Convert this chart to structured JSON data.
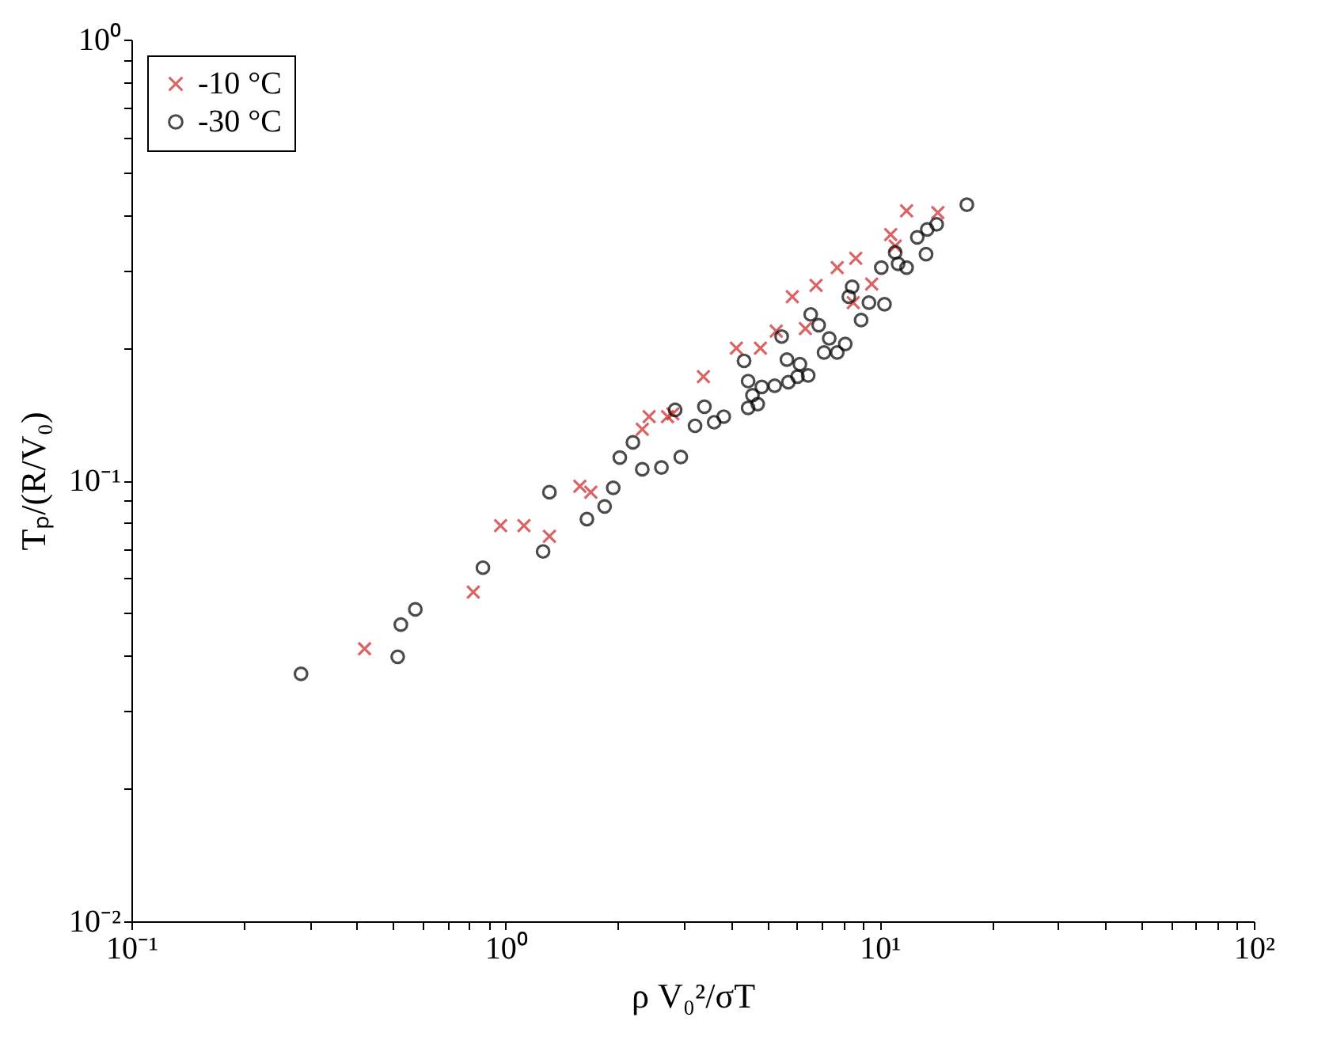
{
  "chart_data": {
    "type": "scatter",
    "xlabel": "ρ V₀²/σT",
    "ylabel": "Tₚ/(R/V₀)",
    "log": "xy",
    "xlim": [
      0.1,
      100
    ],
    "ylim": [
      0.01,
      1
    ],
    "xticks": [
      {
        "value": 0.1,
        "label": "10⁻¹"
      },
      {
        "value": 0.2,
        "label": null
      },
      {
        "value": 0.3,
        "label": null
      },
      {
        "value": 0.4,
        "label": null
      },
      {
        "value": 0.5,
        "label": null
      },
      {
        "value": 0.6,
        "label": null
      },
      {
        "value": 0.7,
        "label": null
      },
      {
        "value": 0.8,
        "label": null
      },
      {
        "value": 0.9,
        "label": null
      },
      {
        "value": 1,
        "label": "10⁰"
      },
      {
        "value": 2,
        "label": null
      },
      {
        "value": 3,
        "label": null
      },
      {
        "value": 4,
        "label": null
      },
      {
        "value": 5,
        "label": null
      },
      {
        "value": 6,
        "label": null
      },
      {
        "value": 7,
        "label": null
      },
      {
        "value": 8,
        "label": null
      },
      {
        "value": 9,
        "label": null
      },
      {
        "value": 10,
        "label": "10¹"
      },
      {
        "value": 20,
        "label": null
      },
      {
        "value": 30,
        "label": null
      },
      {
        "value": 40,
        "label": null
      },
      {
        "value": 50,
        "label": null
      },
      {
        "value": 60,
        "label": null
      },
      {
        "value": 70,
        "label": null
      },
      {
        "value": 80,
        "label": null
      },
      {
        "value": 90,
        "label": null
      },
      {
        "value": 100,
        "label": "10²"
      }
    ],
    "yticks": [
      {
        "value": 0.01,
        "label": "10⁻²"
      },
      {
        "value": 0.02,
        "label": null
      },
      {
        "value": 0.03,
        "label": null
      },
      {
        "value": 0.04,
        "label": null
      },
      {
        "value": 0.05,
        "label": null
      },
      {
        "value": 0.06,
        "label": null
      },
      {
        "value": 0.07,
        "label": null
      },
      {
        "value": 0.08,
        "label": null
      },
      {
        "value": 0.09,
        "label": null
      },
      {
        "value": 0.1,
        "label": "10⁻¹"
      },
      {
        "value": 0.2,
        "label": null
      },
      {
        "value": 0.3,
        "label": null
      },
      {
        "value": 0.4,
        "label": null
      },
      {
        "value": 0.5,
        "label": null
      },
      {
        "value": 0.6,
        "label": null
      },
      {
        "value": 0.7,
        "label": null
      },
      {
        "value": 0.8,
        "label": null
      },
      {
        "value": 0.9,
        "label": null
      },
      {
        "value": 1,
        "label": "10⁰"
      }
    ],
    "grid": false,
    "legend": "top left",
    "series": [
      {
        "name": "-10 °C",
        "color": "#cc2222",
        "marker": "cross",
        "x": [
          0.42,
          0.82,
          0.97,
          1.12,
          1.31,
          1.58,
          1.69,
          2.32,
          2.42,
          2.71,
          2.8,
          3.38,
          4.14,
          4.8,
          5.29,
          5.84,
          6.33,
          6.76,
          7.7,
          8.5,
          8.63,
          9.52,
          10.7,
          11.0,
          11.8,
          14.3
        ],
        "values": [
          0.0415,
          0.0558,
          0.079,
          0.079,
          0.0747,
          0.097,
          0.094,
          0.1306,
          0.1395,
          0.1395,
          0.1416,
          0.172,
          0.1995,
          0.1995,
          0.218,
          0.261,
          0.221,
          0.277,
          0.304,
          0.253,
          0.319,
          0.279,
          0.361,
          0.34,
          0.409,
          0.405
        ]
      },
      {
        "name": "-30 °C",
        "color": "#000000",
        "marker": "circle",
        "x": [
          0.284,
          0.515,
          0.525,
          0.574,
          0.87,
          1.26,
          1.31,
          1.65,
          1.84,
          1.94,
          2.02,
          2.19,
          2.32,
          2.61,
          2.94,
          2.84,
          3.21,
          3.4,
          3.61,
          3.83,
          4.45,
          4.72,
          4.57,
          4.45,
          4.34,
          4.84,
          5.24,
          5.7,
          6.03,
          6.44,
          5.65,
          6.12,
          5.47,
          6.54,
          7.1,
          7.7,
          8.09,
          7.33,
          6.87,
          8.44,
          8.27,
          8.92,
          9.36,
          10.3,
          10.1,
          11.2,
          11.8,
          13.3,
          12.6,
          13.4,
          14.2,
          17.1,
          11.0
        ],
        "values": [
          0.0364,
          0.0398,
          0.0471,
          0.051,
          0.0634,
          0.069,
          0.094,
          0.0817,
          0.0873,
          0.0962,
          0.1127,
          0.122,
          0.106,
          0.107,
          0.113,
          0.1445,
          0.133,
          0.147,
          0.1355,
          0.1395,
          0.146,
          0.149,
          0.156,
          0.168,
          0.1867,
          0.163,
          0.164,
          0.167,
          0.172,
          0.173,
          0.188,
          0.1835,
          0.212,
          0.238,
          0.195,
          0.195,
          0.204,
          0.21,
          0.225,
          0.275,
          0.261,
          0.231,
          0.253,
          0.251,
          0.304,
          0.31,
          0.304,
          0.326,
          0.356,
          0.371,
          0.381,
          0.422,
          0.329
        ]
      }
    ]
  }
}
